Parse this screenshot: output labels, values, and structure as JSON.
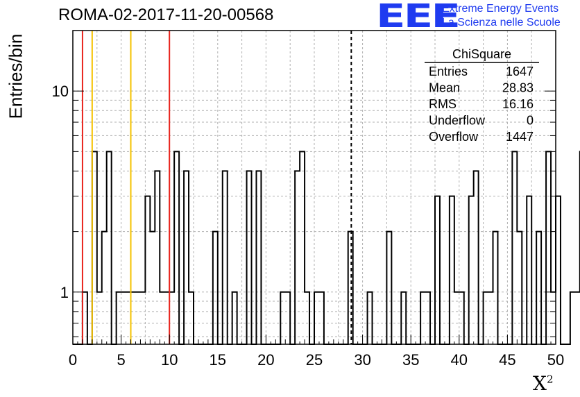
{
  "header": {
    "title": "ROMA-02-2017-11-20-00568",
    "logo_mark": "EEE",
    "logo_line1": "Extreme Energy Events",
    "logo_line2": "La Scienza nelle Scuole",
    "logo_color": "#1f3bf0"
  },
  "chart_data": {
    "type": "histogram",
    "title": "ROMA-02-2017-11-20-00568",
    "xlabel": "X²",
    "ylabel": "Entries/bin",
    "xlim": [
      0,
      50
    ],
    "ylim": [
      0.55,
      20
    ],
    "yscale": "log",
    "grid": true,
    "x_ticks": [
      0,
      5,
      10,
      15,
      20,
      25,
      30,
      35,
      40,
      45,
      50
    ],
    "y_tick_labels": [
      1,
      10
    ],
    "bin_width": 0.5,
    "bin_values": [
      0,
      0,
      1,
      0,
      5,
      1,
      2,
      5,
      0,
      1,
      1,
      1,
      1,
      1,
      1,
      3,
      2,
      4,
      1,
      1,
      1,
      5,
      0,
      4,
      1,
      0,
      0,
      0,
      0,
      2,
      0,
      4,
      0,
      1,
      0,
      0,
      4,
      0,
      4,
      0,
      0,
      0,
      0,
      1,
      1,
      0,
      4,
      5,
      1,
      0,
      1,
      1,
      0,
      0,
      0,
      0,
      0,
      2,
      0,
      0,
      0,
      1,
      0,
      0,
      0,
      2,
      0,
      0,
      1,
      0,
      0,
      0,
      1,
      1,
      0,
      3,
      0,
      0,
      3,
      1,
      1,
      0,
      3,
      4,
      0,
      1,
      1,
      2,
      0,
      0,
      0,
      5,
      2,
      0,
      3,
      0,
      2,
      0,
      5,
      1,
      3,
      0,
      0,
      1,
      1,
      5,
      1,
      3,
      1,
      0,
      4,
      2,
      0,
      3,
      1,
      0,
      0,
      0,
      4,
      0,
      3,
      2,
      1,
      0,
      3,
      1,
      1,
      0,
      3,
      3,
      4,
      1,
      2,
      3,
      2,
      3,
      5,
      1,
      3,
      2,
      1,
      0,
      4,
      2,
      3,
      1,
      0,
      1,
      0,
      2,
      2,
      0,
      2,
      1,
      4,
      2,
      6,
      1,
      5,
      0,
      3,
      1,
      2,
      1,
      2,
      1,
      1,
      0,
      1,
      1,
      5,
      2,
      5,
      5,
      6,
      1,
      5,
      2,
      3,
      3,
      0,
      3,
      4,
      3,
      4,
      4,
      1,
      1,
      6,
      4,
      5,
      5,
      1,
      4,
      10,
      4,
      5,
      4,
      6,
      2,
      10,
      3,
      4,
      4,
      3,
      5,
      10,
      7,
      9,
      3,
      8,
      9,
      9,
      8,
      3,
      6,
      7,
      3,
      5,
      7,
      8,
      2,
      5,
      2,
      4,
      4,
      2,
      4,
      4,
      2,
      4,
      3,
      3,
      3,
      4,
      4,
      3,
      3,
      6,
      7,
      4,
      5,
      9,
      2,
      6,
      5,
      4,
      7,
      5,
      2,
      11,
      3,
      4,
      5,
      0,
      3,
      3,
      4,
      6,
      4,
      5
    ],
    "vertical_markers": [
      {
        "x": 1,
        "color": "#e8231c",
        "style": "solid"
      },
      {
        "x": 2,
        "color": "#f5c200",
        "style": "solid"
      },
      {
        "x": 6,
        "color": "#f5c200",
        "style": "solid"
      },
      {
        "x": 10,
        "color": "#e8231c",
        "style": "solid"
      },
      {
        "x": 28.83,
        "color": "#000000",
        "style": "dashed"
      }
    ],
    "stats_box": {
      "title": "ChiSquare",
      "rows": [
        {
          "label": "Entries",
          "value": "1647"
        },
        {
          "label": "Mean",
          "value": "28.83"
        },
        {
          "label": "RMS",
          "value": "16.16"
        },
        {
          "label": "Underflow",
          "value": "0"
        },
        {
          "label": "Overflow",
          "value": "1447"
        }
      ]
    }
  }
}
